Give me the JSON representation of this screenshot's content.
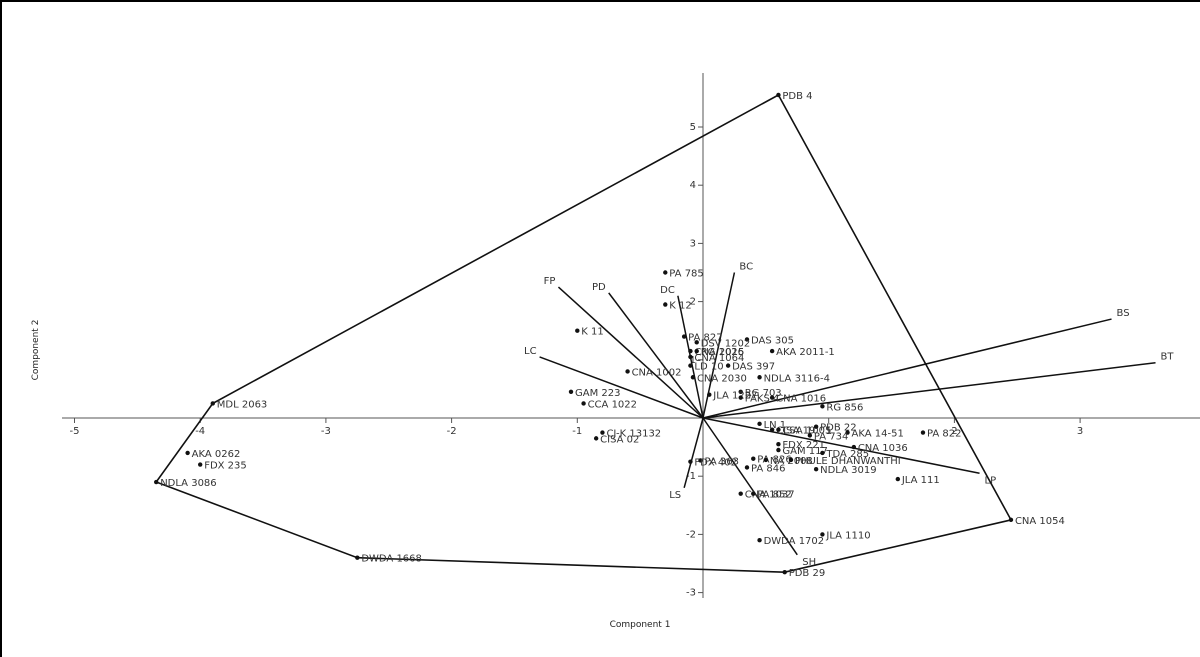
{
  "chart_data": {
    "type": "scatter",
    "title": "",
    "xlabel": "Component 1",
    "ylabel": "Component 2",
    "xlim": [
      -5,
      3.8
    ],
    "ylim": [
      -3,
      6
    ],
    "x_ticks": [
      -5,
      -4,
      -3,
      -2,
      -1,
      1,
      2,
      3
    ],
    "y_ticks": [
      -3,
      -2,
      -1,
      1,
      2,
      3,
      4,
      5
    ],
    "points": [
      {
        "label": "PDB 4",
        "x": 0.6,
        "y": 5.55
      },
      {
        "label": "PA 785",
        "x": -0.3,
        "y": 2.5
      },
      {
        "label": "K 12",
        "x": -0.3,
        "y": 1.95
      },
      {
        "label": "K 11",
        "x": -1.0,
        "y": 1.5
      },
      {
        "label": "PA 827",
        "x": -0.15,
        "y": 1.4
      },
      {
        "label": "DAS 305",
        "x": 0.35,
        "y": 1.35
      },
      {
        "label": "DSV 1202",
        "x": -0.05,
        "y": 1.3
      },
      {
        "label": "CNA 2015",
        "x": -0.1,
        "y": 1.15
      },
      {
        "label": "RG 1026",
        "x": -0.05,
        "y": 1.15
      },
      {
        "label": "CNA 1064",
        "x": -0.1,
        "y": 1.05
      },
      {
        "label": "DAS 397",
        "x": 0.2,
        "y": 0.9
      },
      {
        "label": "LD 10",
        "x": -0.1,
        "y": 0.9
      },
      {
        "label": "AKA 2011-1",
        "x": 0.55,
        "y": 1.15
      },
      {
        "label": "CNA 1002",
        "x": -0.6,
        "y": 0.8
      },
      {
        "label": "CNA 2030",
        "x": -0.08,
        "y": 0.7
      },
      {
        "label": "NDLA 3116-4",
        "x": 0.45,
        "y": 0.7
      },
      {
        "label": "RG 703",
        "x": 0.3,
        "y": 0.45
      },
      {
        "label": "JLA 1227",
        "x": 0.05,
        "y": 0.4
      },
      {
        "label": "PAKS 4",
        "x": 0.3,
        "y": 0.35
      },
      {
        "label": "CNA 1016",
        "x": 0.55,
        "y": 0.35
      },
      {
        "label": "GAM 223",
        "x": -1.05,
        "y": 0.45
      },
      {
        "label": "CCA 1022",
        "x": -0.95,
        "y": 0.25
      },
      {
        "label": "MDL 2063",
        "x": -3.9,
        "y": 0.25
      },
      {
        "label": "RG 856",
        "x": 0.95,
        "y": 0.2
      },
      {
        "label": "CJ-K 13132",
        "x": -0.8,
        "y": -0.25
      },
      {
        "label": "CISA 02",
        "x": -0.85,
        "y": -0.35
      },
      {
        "label": "LN 1",
        "x": 0.45,
        "y": -0.1
      },
      {
        "label": "CISA 19",
        "x": 0.55,
        "y": -0.2
      },
      {
        "label": "CSA 1005",
        "x": 0.6,
        "y": -0.2
      },
      {
        "label": "PDB 22",
        "x": 0.9,
        "y": -0.15
      },
      {
        "label": "AKA 14-51",
        "x": 1.15,
        "y": -0.25
      },
      {
        "label": "PA 822",
        "x": 1.75,
        "y": -0.25
      },
      {
        "label": "PA 734",
        "x": 0.85,
        "y": -0.3
      },
      {
        "label": "FDX 221",
        "x": 0.6,
        "y": -0.45
      },
      {
        "label": "CNA 1036",
        "x": 1.2,
        "y": -0.5
      },
      {
        "label": "GAM 117",
        "x": 0.6,
        "y": -0.55
      },
      {
        "label": "TDA 285",
        "x": 0.95,
        "y": -0.6
      },
      {
        "label": "PA 826",
        "x": 0.4,
        "y": -0.7
      },
      {
        "label": "NA 2008",
        "x": 0.5,
        "y": -0.72
      },
      {
        "label": "PHULE DHANWANTHI",
        "x": 0.7,
        "y": -0.72
      },
      {
        "label": "PA 363",
        "x": -0.02,
        "y": -0.73
      },
      {
        "label": "FDX 402",
        "x": -0.1,
        "y": -0.75
      },
      {
        "label": "PA 846",
        "x": 0.35,
        "y": -0.85
      },
      {
        "label": "NDLA 3019",
        "x": 0.9,
        "y": -0.88
      },
      {
        "label": "JLA 111",
        "x": 1.55,
        "y": -1.05
      },
      {
        "label": "CNA 1037",
        "x": 0.3,
        "y": -1.3
      },
      {
        "label": "PA 852",
        "x": 0.4,
        "y": -1.3
      },
      {
        "label": "DWDA 1702",
        "x": 0.45,
        "y": -2.1
      },
      {
        "label": "JLA 1110",
        "x": 0.95,
        "y": -2.0
      },
      {
        "label": "PDB 29",
        "x": 0.65,
        "y": -2.65
      },
      {
        "label": "CNA 1054",
        "x": 2.45,
        "y": -1.75
      },
      {
        "label": "AKA 0262",
        "x": -4.1,
        "y": -0.6
      },
      {
        "label": "FDX 235",
        "x": -4.0,
        "y": -0.8
      },
      {
        "label": "NDLA 3086",
        "x": -4.35,
        "y": -1.1
      },
      {
        "label": "DWDA 1668",
        "x": -2.75,
        "y": -2.4
      }
    ],
    "hull": [
      "PDB 4",
      "CNA 1054",
      "PDB 29",
      "DWDA 1668",
      "NDLA 3086",
      "MDL 2063"
    ],
    "loadings": [
      {
        "label": "BS",
        "x": 3.25,
        "y": 1.7
      },
      {
        "label": "BT",
        "x": 3.6,
        "y": 0.95
      },
      {
        "label": "BC",
        "x": 0.25,
        "y": 2.5
      },
      {
        "label": "DC",
        "x": -0.2,
        "y": 2.1
      },
      {
        "label": "PD",
        "x": -0.75,
        "y": 2.15
      },
      {
        "label": "FP",
        "x": -1.15,
        "y": 2.25
      },
      {
        "label": "LC",
        "x": -1.3,
        "y": 1.05
      },
      {
        "label": "SH",
        "x": 0.75,
        "y": -2.35
      },
      {
        "label": "LP",
        "x": 2.2,
        "y": -0.95
      },
      {
        "label": "LS",
        "x": -0.15,
        "y": -1.2
      }
    ]
  }
}
